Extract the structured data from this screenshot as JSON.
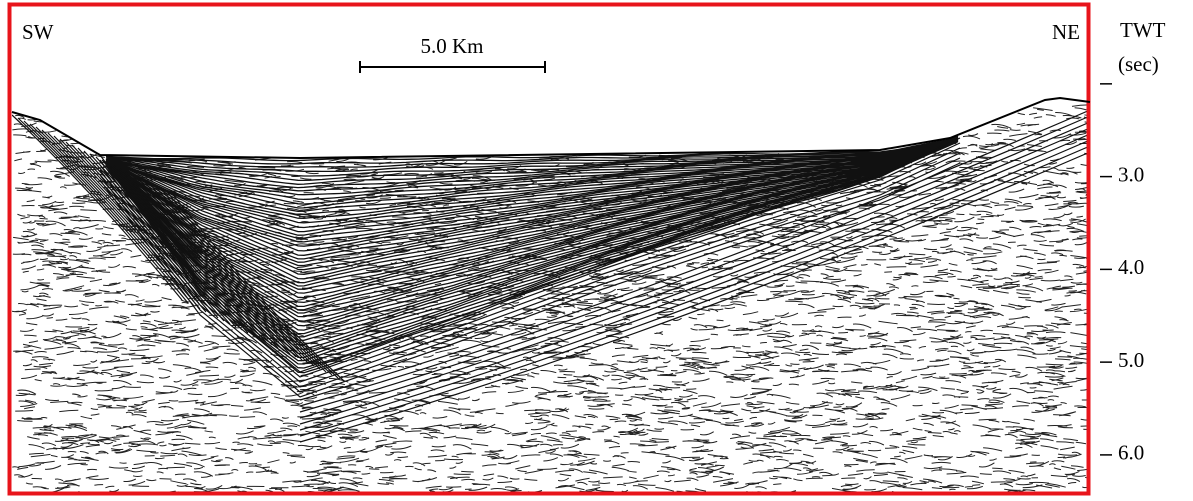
{
  "figure": {
    "labels": {
      "left": "SW",
      "right": "NE"
    },
    "scale_bar": {
      "label": "5.0 Km"
    },
    "axis": {
      "title": "TWT",
      "unit": "(sec)",
      "ylim": [
        1.15,
        6.4
      ],
      "ticks": [
        {
          "value": 2,
          "label": null
        },
        {
          "value": 3,
          "label": "3.0"
        },
        {
          "value": 4,
          "label": "4.0"
        },
        {
          "value": 5,
          "label": "5.0"
        },
        {
          "value": 6,
          "label": "6.0"
        }
      ]
    }
  }
}
